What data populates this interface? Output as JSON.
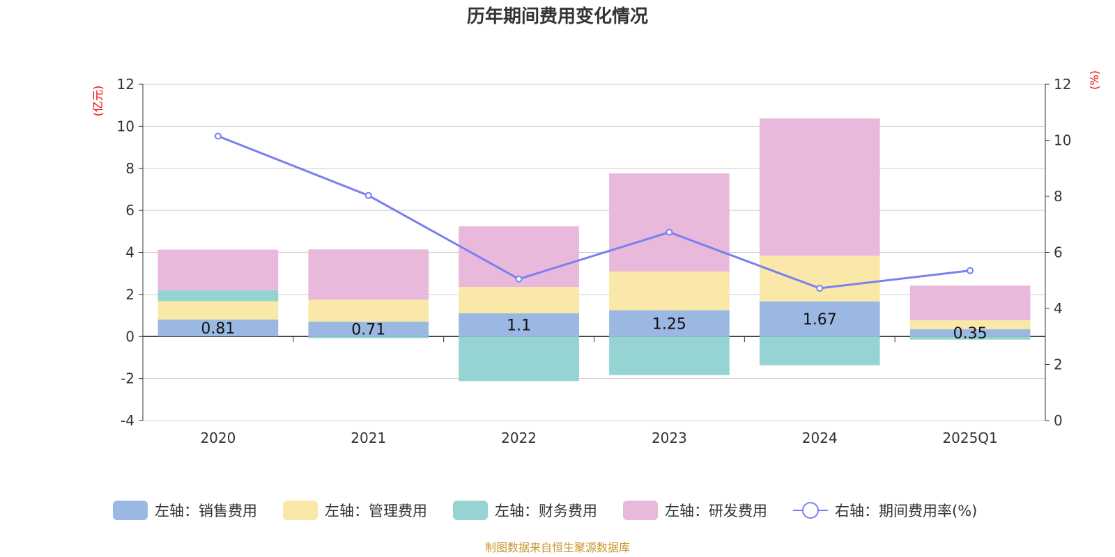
{
  "chart_data": {
    "type": "bar",
    "title": "历年期间费用变化情况",
    "categories": [
      "2020",
      "2021",
      "2022",
      "2023",
      "2024",
      "2025Q1"
    ],
    "left_axis": {
      "unit": "(亿元)",
      "ylim": [
        -4,
        12
      ],
      "ticks": [
        "-4",
        "-2",
        "0",
        "2",
        "4",
        "6",
        "8",
        "10",
        "12"
      ]
    },
    "right_axis": {
      "unit": "(%)",
      "ylim": [
        0,
        12
      ],
      "ticks": [
        "0",
        "2",
        "4",
        "6",
        "8",
        "10",
        "12"
      ]
    },
    "series": [
      {
        "name": "左轴：销售费用",
        "kind": "bar",
        "color": "#9bb8e3",
        "values": [
          0.81,
          0.71,
          1.1,
          1.25,
          1.67,
          0.35
        ],
        "labels": [
          "0.81",
          "0.71",
          "1.1",
          "1.25",
          "1.67",
          "0.35"
        ]
      },
      {
        "name": "左轴：管理费用",
        "kind": "bar",
        "color": "#f9e8a8",
        "values": [
          0.87,
          1.04,
          1.26,
          1.84,
          2.17,
          0.42
        ]
      },
      {
        "name": "左轴：财务费用",
        "kind": "bar",
        "color": "#96d4d4",
        "values": [
          0.52,
          -0.08,
          -2.12,
          -1.84,
          -1.37,
          -0.15
        ]
      },
      {
        "name": "左轴：研发费用",
        "kind": "bar",
        "color": "#e8b9da",
        "values": [
          1.93,
          2.39,
          2.88,
          4.67,
          6.53,
          1.65
        ]
      },
      {
        "name": "右轴：期间费用率(%)",
        "kind": "line",
        "color": "#7b7ff0",
        "values": [
          10.15,
          8.03,
          5.05,
          6.72,
          4.72,
          5.35
        ]
      }
    ],
    "grid": true,
    "legend_position": "bottom"
  },
  "source": "制图数据来自恒生聚源数据库"
}
